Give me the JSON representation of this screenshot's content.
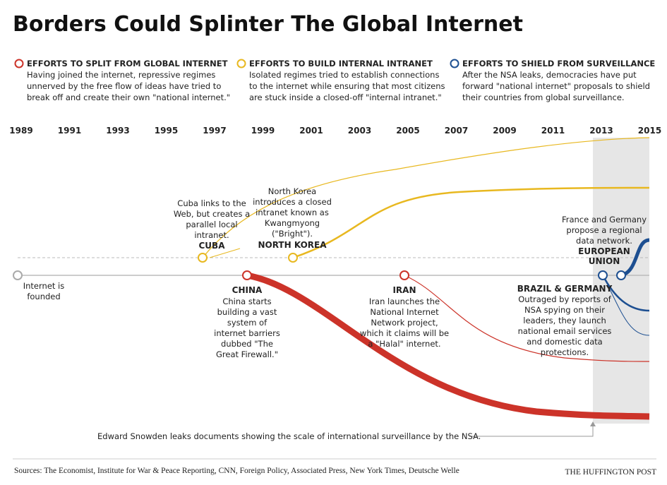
{
  "title": "Borders Could Splinter The Global Internet",
  "legend": [
    {
      "heading": "EFFORTS TO SPLIT FROM GLOBAL INTERNET",
      "lines": [
        "Having joined the internet, repressive regimes",
        "unnerved by the free flow of ideas have tried to",
        "break off and create their own \"national internet.\""
      ]
    },
    {
      "heading": "EFFORTS TO BUILD INTERNAL INTRANET",
      "lines": [
        "Isolated regimes tried to establish connections",
        "to the internet while ensuring that most citizens",
        "are stuck inside a closed-off \"internal intranet.\""
      ]
    },
    {
      "heading": "EFFORTS TO SHIELD FROM SURVEILLANCE",
      "lines": [
        "After the NSA leaks, democracies have put",
        "forward \"national internet\" proposals to shield",
        "their countries from global surveillance."
      ]
    }
  ],
  "years": [
    "1989",
    "1991",
    "1993",
    "1995",
    "1997",
    "1999",
    "2001",
    "2003",
    "2005",
    "2007",
    "2009",
    "2011",
    "2013",
    "2015"
  ],
  "events": {
    "founding": {
      "lines": [
        "Internet is",
        "founded"
      ]
    },
    "cuba": {
      "lines": [
        "Cuba links to the",
        "Web, but creates a",
        "parallel local",
        "intranet."
      ],
      "name": "CUBA"
    },
    "north_korea": {
      "lines": [
        "North Korea",
        "introduces a closed",
        "intranet known as",
        "Kwangmyong",
        "(\"Bright\")."
      ],
      "name": "NORTH KOREA"
    },
    "china": {
      "name": "CHINA",
      "lines": [
        "China starts",
        "building a vast",
        "system of",
        "internet barriers",
        "dubbed \"The",
        "Great Firewall.\""
      ]
    },
    "iran": {
      "name": "IRAN",
      "lines": [
        "Iran launches the",
        "National Internet",
        "Network project,",
        "which it claims will be",
        "a \"Halal\" internet."
      ]
    },
    "european_union": {
      "lines": [
        "France and Germany",
        "propose a regional",
        "data network."
      ],
      "name_lines": [
        "EUROPEAN",
        "UNION"
      ]
    },
    "brazil_germany": {
      "name": "BRAZIL & GERMANY",
      "lines": [
        "Outraged by reports of",
        "NSA spying on their",
        "leaders, they launch",
        "national email services",
        "and domestic data",
        "protections."
      ]
    }
  },
  "snowden": "Edward Snowden leaks documents showing the scale of international surveillance by the NSA.",
  "sources": "Sources: The Economist, Institute for War & Peace Reporting, CNN, Foreign Policy, Associated Press, New York Times, Deutsche Welle",
  "brand": "THE HUFFINGTON POST"
}
